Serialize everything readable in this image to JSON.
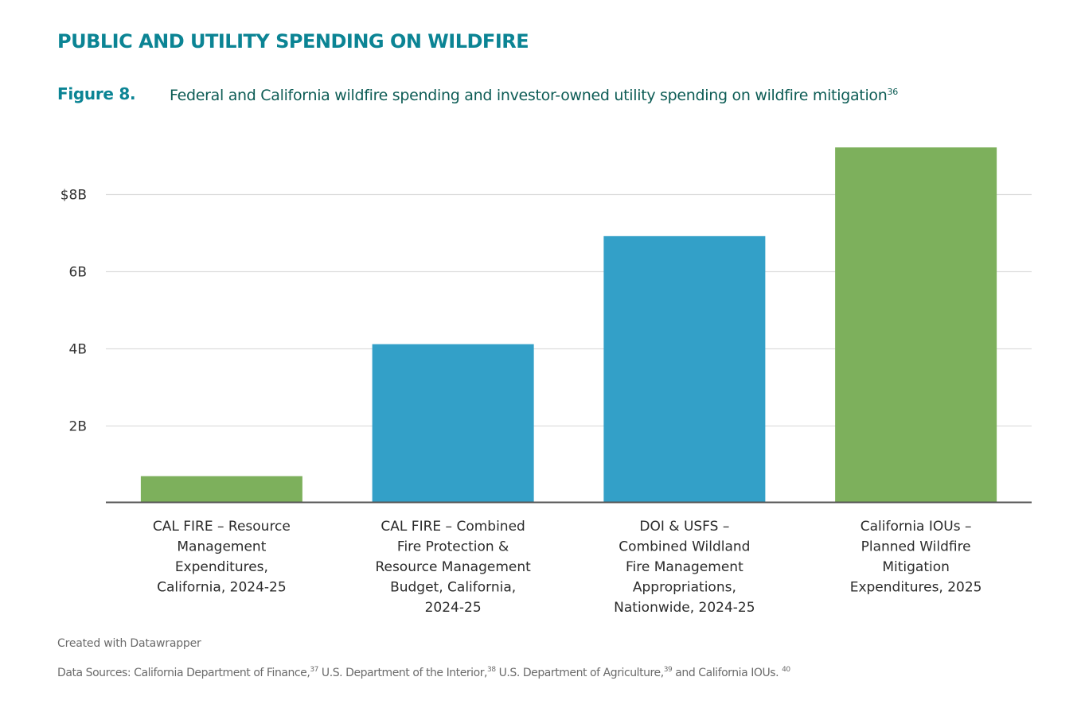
{
  "header": {
    "section_title": "PUBLIC AND UTILITY SPENDING ON WILDFIRE",
    "figure_label": "Figure 8.",
    "caption": "Federal and California wildfire spending and investor-owned utility spending on wildfire mitigation",
    "caption_footnote": "36"
  },
  "colors": {
    "title": "#0b8494",
    "caption": "#0d5c55",
    "green_bar": "#7db05c",
    "blue_bar": "#33a0c8",
    "gridline": "#dddddd",
    "baseline": "#555555"
  },
  "chart_data": {
    "type": "bar",
    "title": "Federal and California wildfire spending and investor-owned utility spending on wildfire mitigation",
    "xlabel": "",
    "ylabel": "",
    "ylim": [
      0,
      9.2
    ],
    "grid": true,
    "legend": "none",
    "yticks": [
      {
        "value": 2,
        "label": "2B"
      },
      {
        "value": 4,
        "label": "4B"
      },
      {
        "value": 6,
        "label": "6B"
      },
      {
        "value": 8,
        "label": "$8B"
      }
    ],
    "categories": [
      [
        "CAL FIRE – Resource",
        "Management",
        "Expenditures,",
        "California, 2024-25"
      ],
      [
        "CAL FIRE – Combined",
        "Fire Protection &",
        "Resource Management",
        "Budget, California,",
        "2024-25"
      ],
      [
        "DOI & USFS –",
        "Combined Wildland",
        "Fire Management",
        "Appropriations,",
        "Nationwide, 2024-25"
      ],
      [
        "California IOUs –",
        "Planned Wildfire",
        "Mitigation",
        "Expenditures, 2025"
      ]
    ],
    "values": [
      0.68,
      4.1,
      6.9,
      9.2
    ],
    "value_unit": "billion USD",
    "bar_colors": [
      "green",
      "blue",
      "blue",
      "green"
    ]
  },
  "footer": {
    "credit": "Created with Datawrapper",
    "sources": [
      {
        "text": "Data Sources: California Department of Finance,",
        "sup": "37"
      },
      {
        "text": " U.S. Department of the Interior,",
        "sup": "38"
      },
      {
        "text": " U.S. Department of Agriculture,",
        "sup": "39"
      },
      {
        "text": " and California IOUs. ",
        "sup": "40"
      }
    ]
  }
}
